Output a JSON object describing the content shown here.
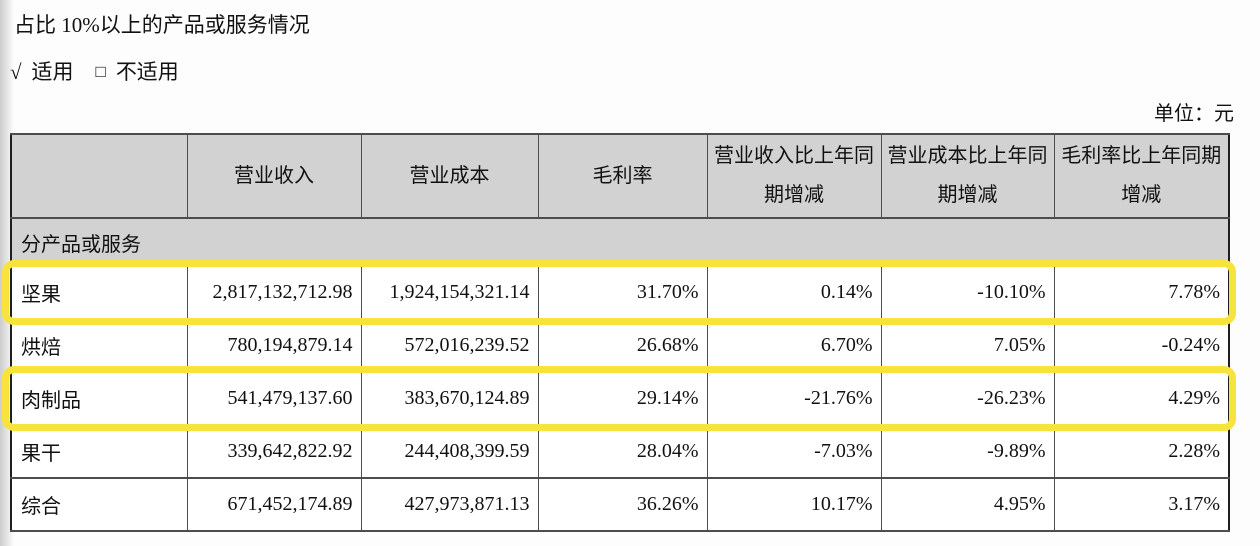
{
  "page": {
    "title": "占比 10%以上的产品或服务情况",
    "applicable": {
      "check_mark": "√",
      "applicable_label": "适用",
      "checkbox": "□",
      "not_applicable_label": "不适用"
    },
    "unit_label": "单位：元"
  },
  "table": {
    "columns": [
      "",
      "营业收入",
      "营业成本",
      "毛利率",
      "营业收入比上年同期增减",
      "营业成本比上年同期增减",
      "毛利率比上年同期增减"
    ],
    "section_label": "分产品或服务",
    "highlight_color": "#f6e43c",
    "rows": [
      {
        "label": "坚果",
        "revenue": "2,817,132,712.98",
        "cost": "1,924,154,321.14",
        "gross_margin": "31.70%",
        "revenue_yoy": "0.14%",
        "cost_yoy": "-10.10%",
        "margin_yoy": "7.78%",
        "highlighted": true
      },
      {
        "label": "烘焙",
        "revenue": "780,194,879.14",
        "cost": "572,016,239.52",
        "gross_margin": "26.68%",
        "revenue_yoy": "6.70%",
        "cost_yoy": "7.05%",
        "margin_yoy": "-0.24%",
        "highlighted": false
      },
      {
        "label": "肉制品",
        "revenue": "541,479,137.60",
        "cost": "383,670,124.89",
        "gross_margin": "29.14%",
        "revenue_yoy": "-21.76%",
        "cost_yoy": "-26.23%",
        "margin_yoy": "4.29%",
        "highlighted": true
      },
      {
        "label": "果干",
        "revenue": "339,642,822.92",
        "cost": "244,408,399.59",
        "gross_margin": "28.04%",
        "revenue_yoy": "-7.03%",
        "cost_yoy": "-9.89%",
        "margin_yoy": "2.28%",
        "highlighted": false
      },
      {
        "label": "综合",
        "revenue": "671,452,174.89",
        "cost": "427,973,871.13",
        "gross_margin": "36.26%",
        "revenue_yoy": "10.17%",
        "cost_yoy": "4.95%",
        "margin_yoy": "3.17%",
        "highlighted": false
      }
    ]
  }
}
